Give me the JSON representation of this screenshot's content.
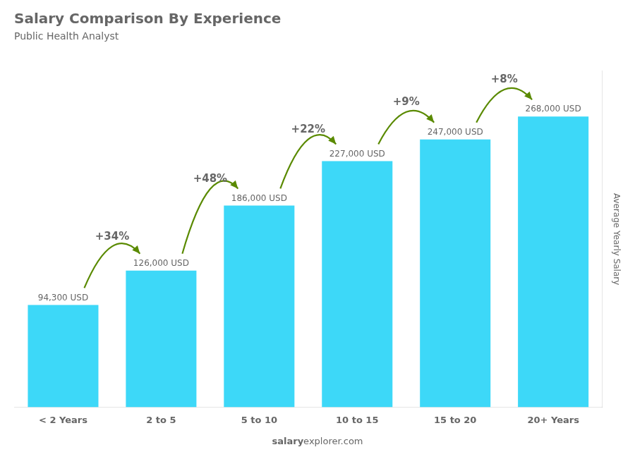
{
  "chart_data": {
    "type": "bar",
    "title": "Salary Comparison By Experience",
    "subtitle": "Public Health Analyst",
    "categories": [
      "< 2 Years",
      "2 to 5",
      "5 to 10",
      "10 to 15",
      "15 to 20",
      "20+ Years"
    ],
    "values": [
      94300,
      126000,
      186000,
      227000,
      247000,
      268000
    ],
    "value_labels": [
      "94,300 USD",
      "126,000 USD",
      "186,000 USD",
      "227,000 USD",
      "247,000 USD",
      "268,000 USD"
    ],
    "data_labels": true,
    "color": "#3dd8f8",
    "ylim": [
      0,
      310000
    ],
    "ylabel": "Average Yearly Salary",
    "annotations": [
      "+34%",
      "+48%",
      "+22%",
      "+9%",
      "+8%"
    ],
    "footer": [
      "salary",
      "explorer.com"
    ],
    "grid": false,
    "tick_labels": "x"
  }
}
